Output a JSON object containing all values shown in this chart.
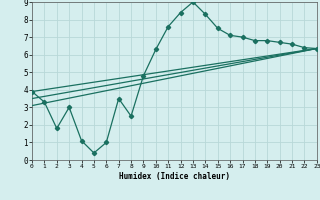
{
  "xlabel": "Humidex (Indice chaleur)",
  "bg_color": "#d5eeee",
  "grid_color": "#b8d8d8",
  "line_color": "#1a7060",
  "xlim": [
    0,
    23
  ],
  "ylim": [
    0,
    9
  ],
  "xticks": [
    0,
    1,
    2,
    3,
    4,
    5,
    6,
    7,
    8,
    9,
    10,
    11,
    12,
    13,
    14,
    15,
    16,
    17,
    18,
    19,
    20,
    21,
    22,
    23
  ],
  "yticks": [
    0,
    1,
    2,
    3,
    4,
    5,
    6,
    7,
    8,
    9
  ],
  "curve1_x": [
    0,
    1,
    2,
    3,
    4,
    5,
    6,
    7,
    8,
    9,
    10,
    11,
    12,
    13,
    14,
    15,
    16,
    17,
    18,
    19,
    20,
    21,
    22,
    23
  ],
  "curve1_y": [
    3.9,
    3.3,
    1.8,
    3.0,
    1.1,
    0.4,
    1.0,
    3.5,
    2.5,
    4.8,
    6.3,
    7.6,
    8.4,
    9.0,
    8.3,
    7.5,
    7.1,
    7.0,
    6.8,
    6.8,
    6.7,
    6.6,
    6.4,
    6.35
  ],
  "line2_x": [
    0,
    23
  ],
  "line2_y": [
    3.9,
    6.35
  ],
  "line3_x": [
    0,
    23
  ],
  "line3_y": [
    3.5,
    6.35
  ],
  "line4_x": [
    0,
    23
  ],
  "line4_y": [
    3.1,
    6.35
  ]
}
